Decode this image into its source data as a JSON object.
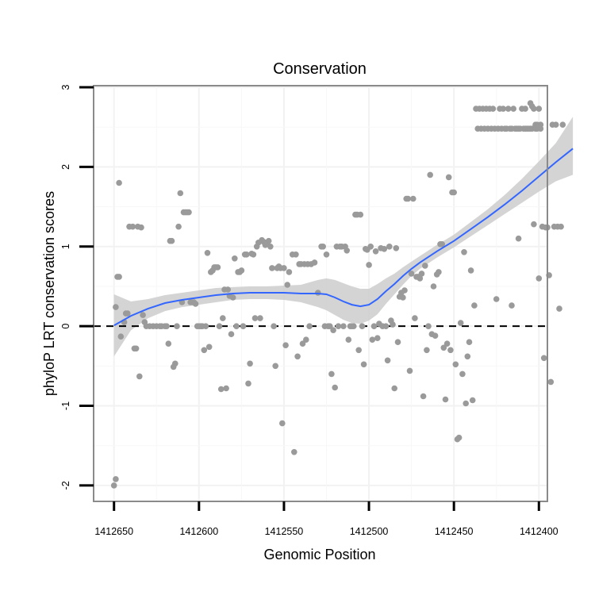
{
  "chart_data": {
    "type": "scatter",
    "title": "Conservation",
    "xlabel": "Genomic Position",
    "ylabel": "phyloP LRT conservation scores",
    "x_reversed": true,
    "xlim": [
      1412662,
      1412395
    ],
    "ylim": [
      -2.2,
      3.02
    ],
    "x_ticks": [
      1412650,
      1412600,
      1412550,
      1412500,
      1412450,
      1412400
    ],
    "x_tick_labels": [
      "1412650",
      "1412600",
      "1412550",
      "1412500",
      "1412450",
      "1412400"
    ],
    "y_ticks": [
      -2,
      -1,
      0,
      1,
      2,
      3
    ],
    "y_tick_labels": [
      "-2",
      "-1",
      "0",
      "1",
      "2",
      "3"
    ],
    "reference_line": {
      "y": 0,
      "style": "dashed"
    },
    "colors": {
      "points": "#9a9a9a",
      "smooth": "#3366ff",
      "ribbon": "#cccccc",
      "grid": "#f2f2f2",
      "frame": "#8a8a8a"
    },
    "points": [
      [
        1412650,
        -2.0
      ],
      [
        1412649,
        -1.92
      ],
      [
        1412649,
        0.24
      ],
      [
        1412648,
        0.62
      ],
      [
        1412647,
        0.62
      ],
      [
        1412647,
        1.8
      ],
      [
        1412646,
        -0.13
      ],
      [
        1412644,
        0.05
      ],
      [
        1412643,
        0.16
      ],
      [
        1412642,
        0.16
      ],
      [
        1412641,
        1.25
      ],
      [
        1412639,
        1.25
      ],
      [
        1412638,
        -0.28
      ],
      [
        1412637,
        -0.28
      ],
      [
        1412636,
        1.25
      ],
      [
        1412635,
        -0.63
      ],
      [
        1412634,
        1.24
      ],
      [
        1412633,
        0.14
      ],
      [
        1412632,
        0.05
      ],
      [
        1412631,
        0.0
      ],
      [
        1412629,
        0.0
      ],
      [
        1412627,
        0.0
      ],
      [
        1412625,
        0.0
      ],
      [
        1412623,
        0.0
      ],
      [
        1412622,
        0.0
      ],
      [
        1412620,
        0.0
      ],
      [
        1412619,
        0.0
      ],
      [
        1412618,
        -0.22
      ],
      [
        1412617,
        1.07
      ],
      [
        1412616,
        1.07
      ],
      [
        1412615,
        -0.51
      ],
      [
        1412614,
        -0.47
      ],
      [
        1412613,
        0.0
      ],
      [
        1412612,
        1.25
      ],
      [
        1412611,
        1.67
      ],
      [
        1412610,
        0.3
      ],
      [
        1412609,
        1.43
      ],
      [
        1412608,
        1.43
      ],
      [
        1412607,
        1.43
      ],
      [
        1412606,
        1.43
      ],
      [
        1412605,
        0.3
      ],
      [
        1412604,
        0.3
      ],
      [
        1412603,
        0.3
      ],
      [
        1412602,
        0.28
      ],
      [
        1412601,
        0.0
      ],
      [
        1412600,
        0.0
      ],
      [
        1412599,
        0.0
      ],
      [
        1412598,
        0.0
      ],
      [
        1412597,
        -0.3
      ],
      [
        1412596,
        0.0
      ],
      [
        1412595,
        0.92
      ],
      [
        1412594,
        -0.26
      ],
      [
        1412593,
        0.68
      ],
      [
        1412592,
        0.7
      ],
      [
        1412591,
        0.74
      ],
      [
        1412590,
        0.74
      ],
      [
        1412589,
        0.74
      ],
      [
        1412588,
        0.0
      ],
      [
        1412587,
        -0.79
      ],
      [
        1412586,
        0.1
      ],
      [
        1412585,
        0.46
      ],
      [
        1412584,
        -0.78
      ],
      [
        1412583,
        0.46
      ],
      [
        1412582,
        0.38
      ],
      [
        1412581,
        -0.1
      ],
      [
        1412580,
        0.36
      ],
      [
        1412579,
        0.85
      ],
      [
        1412578,
        0.0
      ],
      [
        1412577,
        0.68
      ],
      [
        1412576,
        0.68
      ],
      [
        1412575,
        0.7
      ],
      [
        1412574,
        0.0
      ],
      [
        1412573,
        0.9
      ],
      [
        1412572,
        0.9
      ],
      [
        1412571,
        -0.72
      ],
      [
        1412570,
        -0.47
      ],
      [
        1412569,
        0.91
      ],
      [
        1412568,
        0.9
      ],
      [
        1412567,
        0.1
      ],
      [
        1412566,
        1.0
      ],
      [
        1412565,
        1.05
      ],
      [
        1412564,
        0.1
      ],
      [
        1412563,
        1.08
      ],
      [
        1412562,
        1.06
      ],
      [
        1412561,
        1.02
      ],
      [
        1412560,
        1.05
      ],
      [
        1412559,
        1.07
      ],
      [
        1412558,
        1.0
      ],
      [
        1412557,
        0.73
      ],
      [
        1412556,
        0.0
      ],
      [
        1412555,
        -0.5
      ],
      [
        1412554,
        0.73
      ],
      [
        1412553,
        0.75
      ],
      [
        1412552,
        0.73
      ],
      [
        1412551,
        -1.22
      ],
      [
        1412550,
        0.73
      ],
      [
        1412549,
        -0.24
      ],
      [
        1412548,
        0.52
      ],
      [
        1412547,
        0.68
      ],
      [
        1412545,
        0.9
      ],
      [
        1412544,
        -1.58
      ],
      [
        1412543,
        0.9
      ],
      [
        1412542,
        -0.38
      ],
      [
        1412541,
        0.78
      ],
      [
        1412540,
        0.78
      ],
      [
        1412539,
        -0.22
      ],
      [
        1412538,
        0.78
      ],
      [
        1412537,
        -0.17
      ],
      [
        1412536,
        0.78
      ],
      [
        1412535,
        0.0
      ],
      [
        1412534,
        0.78
      ],
      [
        1412532,
        0.8
      ],
      [
        1412530,
        0.42
      ],
      [
        1412528,
        1.0
      ],
      [
        1412527,
        1.0
      ],
      [
        1412526,
        0.0
      ],
      [
        1412525,
        0.9
      ],
      [
        1412524,
        0.0
      ],
      [
        1412523,
        0.0
      ],
      [
        1412522,
        -0.6
      ],
      [
        1412521,
        -0.05
      ],
      [
        1412520,
        -0.77
      ],
      [
        1412519,
        1.0
      ],
      [
        1412518,
        0.0
      ],
      [
        1412517,
        1.0
      ],
      [
        1412516,
        1.0
      ],
      [
        1412515,
        0.0
      ],
      [
        1412514,
        1.0
      ],
      [
        1412513,
        0.95
      ],
      [
        1412512,
        -0.17
      ],
      [
        1412511,
        0.0
      ],
      [
        1412510,
        0.0
      ],
      [
        1412509,
        0.0
      ],
      [
        1412508,
        1.4
      ],
      [
        1412507,
        1.4
      ],
      [
        1412506,
        -0.3
      ],
      [
        1412505,
        1.4
      ],
      [
        1412504,
        0.0
      ],
      [
        1412503,
        -0.48
      ],
      [
        1412502,
        0.97
      ],
      [
        1412501,
        0.96
      ],
      [
        1412500,
        0.77
      ],
      [
        1412499,
        1.0
      ],
      [
        1412498,
        -0.17
      ],
      [
        1412497,
        0.0
      ],
      [
        1412496,
        0.94
      ],
      [
        1412495,
        -0.15
      ],
      [
        1412494,
        0.03
      ],
      [
        1412493,
        0.98
      ],
      [
        1412492,
        0.0
      ],
      [
        1412491,
        0.97
      ],
      [
        1412490,
        0.0
      ],
      [
        1412489,
        -0.43
      ],
      [
        1412488,
        1.0
      ],
      [
        1412487,
        0.07
      ],
      [
        1412486,
        0.02
      ],
      [
        1412485,
        -0.78
      ],
      [
        1412484,
        0.98
      ],
      [
        1412483,
        -0.2
      ],
      [
        1412482,
        0.37
      ],
      [
        1412481,
        0.42
      ],
      [
        1412480,
        0.36
      ],
      [
        1412479,
        0.45
      ],
      [
        1412478,
        1.6
      ],
      [
        1412477,
        1.6
      ],
      [
        1412476,
        -0.56
      ],
      [
        1412475,
        0.66
      ],
      [
        1412474,
        1.6
      ],
      [
        1412473,
        0.1
      ],
      [
        1412472,
        0.62
      ],
      [
        1412471,
        0.62
      ],
      [
        1412470,
        0.6
      ],
      [
        1412469,
        0.66
      ],
      [
        1412468,
        -0.88
      ],
      [
        1412467,
        0.76
      ],
      [
        1412466,
        -0.3
      ],
      [
        1412465,
        0.0
      ],
      [
        1412464,
        1.9
      ],
      [
        1412463,
        -0.1
      ],
      [
        1412462,
        0.5
      ],
      [
        1412461,
        -0.12
      ],
      [
        1412460,
        0.65
      ],
      [
        1412459,
        0.68
      ],
      [
        1412458,
        1.03
      ],
      [
        1412457,
        1.03
      ],
      [
        1412456,
        -0.27
      ],
      [
        1412455,
        -0.92
      ],
      [
        1412454,
        -0.22
      ],
      [
        1412453,
        1.87
      ],
      [
        1412452,
        -0.3
      ],
      [
        1412451,
        1.68
      ],
      [
        1412450,
        1.68
      ],
      [
        1412449,
        -0.48
      ],
      [
        1412448,
        -1.42
      ],
      [
        1412447,
        -1.4
      ],
      [
        1412446,
        0.04
      ],
      [
        1412445,
        -0.6
      ],
      [
        1412444,
        0.93
      ],
      [
        1412443,
        -0.97
      ],
      [
        1412442,
        -0.38
      ],
      [
        1412441,
        -0.2
      ],
      [
        1412440,
        0.7
      ],
      [
        1412439,
        -0.93
      ],
      [
        1412438,
        0.26
      ],
      [
        1412437,
        2.73
      ],
      [
        1412436,
        2.48
      ],
      [
        1412435,
        2.73
      ],
      [
        1412434,
        2.48
      ],
      [
        1412433,
        2.73
      ],
      [
        1412432,
        2.48
      ],
      [
        1412431,
        2.73
      ],
      [
        1412430,
        2.48
      ],
      [
        1412429,
        2.73
      ],
      [
        1412428,
        2.48
      ],
      [
        1412427,
        2.73
      ],
      [
        1412426,
        2.48
      ],
      [
        1412425,
        0.34
      ],
      [
        1412424,
        2.48
      ],
      [
        1412423,
        2.73
      ],
      [
        1412422,
        2.48
      ],
      [
        1412421,
        2.73
      ],
      [
        1412420,
        2.48
      ],
      [
        1412419,
        2.48
      ],
      [
        1412418,
        2.73
      ],
      [
        1412417,
        2.48
      ],
      [
        1412416,
        2.48
      ],
      [
        1412415,
        2.73
      ],
      [
        1412414,
        2.48
      ],
      [
        1412413,
        2.48
      ],
      [
        1412412,
        2.48
      ],
      [
        1412411,
        2.48
      ],
      [
        1412410,
        2.73
      ],
      [
        1412409,
        2.48
      ],
      [
        1412408,
        2.73
      ],
      [
        1412407,
        2.48
      ],
      [
        1412406,
        2.48
      ],
      [
        1412405,
        2.48
      ],
      [
        1412404,
        2.48
      ],
      [
        1412403,
        2.73
      ],
      [
        1412402,
        2.48
      ],
      [
        1412401,
        2.48
      ],
      [
        1412400,
        2.73
      ],
      [
        1412399,
        2.48
      ],
      [
        1412416,
        0.26
      ],
      [
        1412412,
        1.1
      ],
      [
        1412408,
        2.48
      ],
      [
        1412405,
        2.8
      ],
      [
        1412404,
        2.76
      ],
      [
        1412403,
        1.28
      ],
      [
        1412402,
        2.53
      ],
      [
        1412401,
        2.53
      ],
      [
        1412400,
        0.6
      ],
      [
        1412399,
        2.53
      ],
      [
        1412398,
        1.25
      ],
      [
        1412397,
        -0.4
      ],
      [
        1412396,
        1.24
      ],
      [
        1412395,
        1.24
      ],
      [
        1412394,
        0.64
      ],
      [
        1412393,
        -0.7
      ],
      [
        1412392,
        2.53
      ],
      [
        1412391,
        1.25
      ],
      [
        1412390,
        2.53
      ],
      [
        1412389,
        1.25
      ],
      [
        1412388,
        0.22
      ],
      [
        1412387,
        1.25
      ],
      [
        1412386,
        2.53
      ]
    ],
    "smooth": [
      [
        1412650,
        0.01
      ],
      [
        1412640,
        0.13
      ],
      [
        1412630,
        0.22
      ],
      [
        1412620,
        0.29
      ],
      [
        1412610,
        0.33
      ],
      [
        1412600,
        0.36
      ],
      [
        1412590,
        0.39
      ],
      [
        1412580,
        0.41
      ],
      [
        1412570,
        0.42
      ],
      [
        1412560,
        0.42
      ],
      [
        1412550,
        0.42
      ],
      [
        1412540,
        0.41
      ],
      [
        1412530,
        0.41
      ],
      [
        1412525,
        0.4
      ],
      [
        1412520,
        0.36
      ],
      [
        1412515,
        0.31
      ],
      [
        1412510,
        0.27
      ],
      [
        1412505,
        0.25
      ],
      [
        1412500,
        0.27
      ],
      [
        1412495,
        0.34
      ],
      [
        1412490,
        0.44
      ],
      [
        1412485,
        0.53
      ],
      [
        1412480,
        0.63
      ],
      [
        1412475,
        0.72
      ],
      [
        1412470,
        0.8
      ],
      [
        1412460,
        0.94
      ],
      [
        1412450,
        1.07
      ],
      [
        1412440,
        1.22
      ],
      [
        1412430,
        1.37
      ],
      [
        1412420,
        1.53
      ],
      [
        1412410,
        1.7
      ],
      [
        1412400,
        1.88
      ],
      [
        1412390,
        2.06
      ],
      [
        1412380,
        2.23
      ]
    ],
    "ribbon_lower": [
      [
        1412650,
        -0.38
      ],
      [
        1412640,
        -0.05
      ],
      [
        1412630,
        0.1
      ],
      [
        1412620,
        0.19
      ],
      [
        1412610,
        0.24
      ],
      [
        1412600,
        0.27
      ],
      [
        1412590,
        0.3
      ],
      [
        1412580,
        0.33
      ],
      [
        1412570,
        0.34
      ],
      [
        1412560,
        0.34
      ],
      [
        1412550,
        0.33
      ],
      [
        1412540,
        0.3
      ],
      [
        1412530,
        0.24
      ],
      [
        1412525,
        0.2
      ],
      [
        1412520,
        0.14
      ],
      [
        1412515,
        0.08
      ],
      [
        1412510,
        0.04
      ],
      [
        1412505,
        0.03
      ],
      [
        1412500,
        0.07
      ],
      [
        1412495,
        0.15
      ],
      [
        1412490,
        0.28
      ],
      [
        1412485,
        0.4
      ],
      [
        1412480,
        0.52
      ],
      [
        1412475,
        0.63
      ],
      [
        1412470,
        0.72
      ],
      [
        1412460,
        0.86
      ],
      [
        1412450,
        0.99
      ],
      [
        1412440,
        1.13
      ],
      [
        1412430,
        1.27
      ],
      [
        1412420,
        1.41
      ],
      [
        1412410,
        1.55
      ],
      [
        1412400,
        1.69
      ],
      [
        1412390,
        1.82
      ],
      [
        1412380,
        1.9
      ]
    ],
    "ribbon_upper": [
      [
        1412650,
        0.4
      ],
      [
        1412640,
        0.31
      ],
      [
        1412630,
        0.34
      ],
      [
        1412620,
        0.39
      ],
      [
        1412610,
        0.42
      ],
      [
        1412600,
        0.45
      ],
      [
        1412590,
        0.48
      ],
      [
        1412580,
        0.49
      ],
      [
        1412570,
        0.5
      ],
      [
        1412560,
        0.5
      ],
      [
        1412550,
        0.51
      ],
      [
        1412540,
        0.52
      ],
      [
        1412530,
        0.58
      ],
      [
        1412525,
        0.6
      ],
      [
        1412520,
        0.58
      ],
      [
        1412515,
        0.54
      ],
      [
        1412510,
        0.5
      ],
      [
        1412505,
        0.47
      ],
      [
        1412500,
        0.47
      ],
      [
        1412495,
        0.53
      ],
      [
        1412490,
        0.6
      ],
      [
        1412485,
        0.66
      ],
      [
        1412480,
        0.74
      ],
      [
        1412475,
        0.81
      ],
      [
        1412470,
        0.88
      ],
      [
        1412460,
        1.02
      ],
      [
        1412450,
        1.15
      ],
      [
        1412440,
        1.31
      ],
      [
        1412430,
        1.47
      ],
      [
        1412420,
        1.65
      ],
      [
        1412410,
        1.85
      ],
      [
        1412400,
        2.07
      ],
      [
        1412390,
        2.3
      ],
      [
        1412380,
        2.63
      ]
    ]
  }
}
